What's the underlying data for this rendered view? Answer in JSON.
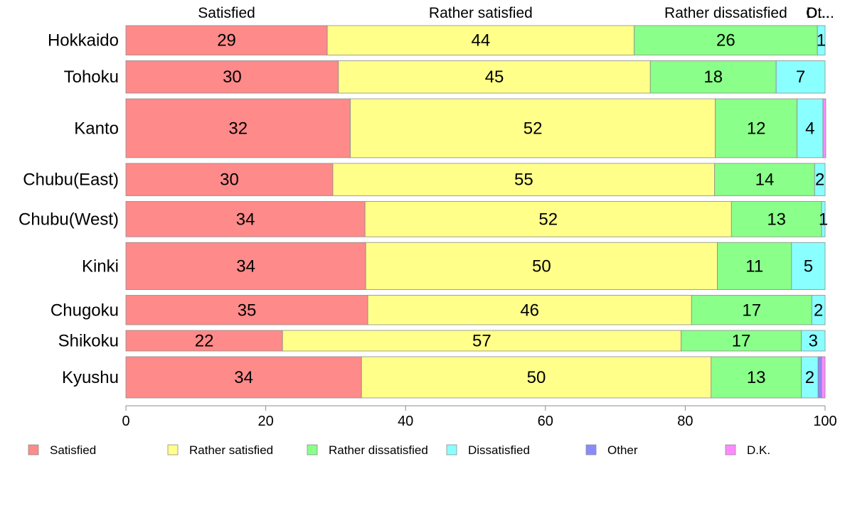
{
  "chart_data": {
    "type": "bar",
    "orientation": "horizontal",
    "stacked": true,
    "categories": [
      "Hokkaido",
      "Tohoku",
      "Kanto",
      "Chubu(East)",
      "Chubu(West)",
      "Kinki",
      "Chugoku",
      "Shikoku",
      "Kyushu"
    ],
    "series": [
      {
        "name": "Satisfied",
        "color": "#ff8a8a",
        "values": [
          28.8,
          30.4,
          32.1,
          29.6,
          34.2,
          34.3,
          34.6,
          22.4,
          33.7
        ]
      },
      {
        "name": "Rather satisfied",
        "color": "#ffff8a",
        "values": [
          43.9,
          44.6,
          52.2,
          54.6,
          52.4,
          50.3,
          46.3,
          57.0,
          50.0
        ]
      },
      {
        "name": "Rather dissatisfied",
        "color": "#8aff8a",
        "values": [
          26.2,
          18.0,
          11.7,
          14.3,
          12.9,
          10.6,
          17.2,
          17.2,
          12.9
        ]
      },
      {
        "name": "Dissatisfied",
        "color": "#8affff",
        "values": [
          1.1,
          7.0,
          3.7,
          1.5,
          0.5,
          4.8,
          1.9,
          3.4,
          2.4
        ]
      },
      {
        "name": "Other",
        "color": "#8a8aff",
        "values": [
          0,
          0,
          0,
          0,
          0,
          0,
          0,
          0,
          0.5
        ]
      },
      {
        "name": "D.K.",
        "color": "#ff8aff",
        "values": [
          0,
          0,
          0.4,
          0,
          0,
          0,
          0,
          0,
          0.5
        ]
      }
    ],
    "data_labels": [
      [
        "29",
        "44",
        "26",
        "1",
        "",
        ""
      ],
      [
        "30",
        "45",
        "18",
        "7",
        "",
        ""
      ],
      [
        "32",
        "52",
        "12",
        "4",
        "",
        ""
      ],
      [
        "30",
        "55",
        "14",
        "2",
        "",
        ""
      ],
      [
        "34",
        "52",
        "13",
        "1",
        "",
        ""
      ],
      [
        "34",
        "50",
        "11",
        "5",
        "",
        ""
      ],
      [
        "35",
        "46",
        "17",
        "2",
        "",
        ""
      ],
      [
        "22",
        "57",
        "17",
        "3",
        "",
        ""
      ],
      [
        "34",
        "50",
        "13",
        "2",
        "",
        ""
      ]
    ],
    "row_weights": [
      1,
      1.1,
      2,
      1.1,
      1.2,
      1.6,
      1,
      0.7,
      1.4
    ],
    "top_labels": [
      "Satisfied",
      "Rather satisfied",
      "Rather dissatisfied",
      "D...",
      "Ot..."
    ],
    "xlim": [
      0,
      100
    ],
    "xticks": [
      0,
      20,
      40,
      60,
      80,
      100
    ],
    "xlabel": "",
    "ylabel": "",
    "grid": false,
    "legend_position": "bottom"
  }
}
